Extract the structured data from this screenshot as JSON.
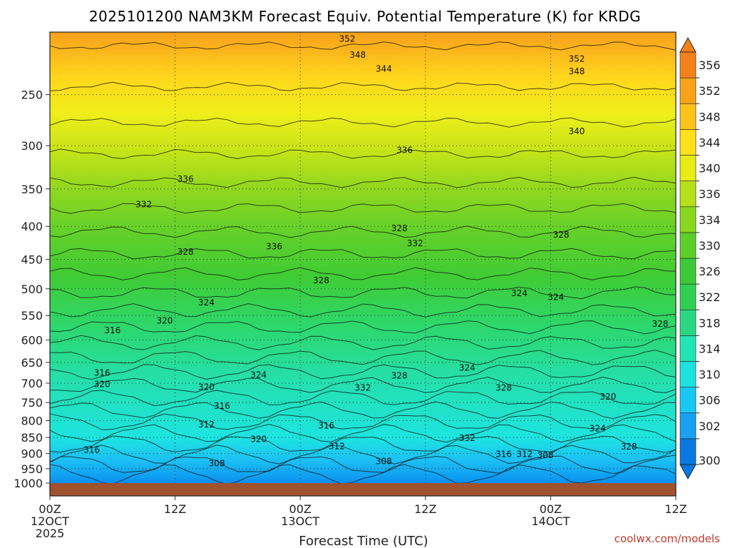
{
  "chart_data": {
    "type": "heatmap",
    "title": "2025101200 NAM3KM Forecast Equiv. Potential Temperature (K) for KRDG",
    "xlabel": "Forecast Time (UTC)",
    "ylabel": "",
    "x_ticks": [
      {
        "line1": "00Z",
        "line2": "12OCT",
        "line3": "2025",
        "hour": 0
      },
      {
        "line1": "12Z",
        "line2": "",
        "line3": "",
        "hour": 12
      },
      {
        "line1": "00Z",
        "line2": "13OCT",
        "line3": "",
        "hour": 24
      },
      {
        "line1": "12Z",
        "line2": "",
        "line3": "",
        "hour": 36
      },
      {
        "line1": "00Z",
        "line2": "14OCT",
        "line3": "",
        "hour": 48
      },
      {
        "line1": "12Z",
        "line2": "",
        "line3": "",
        "hour": 60
      }
    ],
    "xlim_hours": [
      0,
      60
    ],
    "y_ticks": [
      250,
      300,
      350,
      400,
      450,
      500,
      550,
      600,
      650,
      700,
      750,
      800,
      850,
      900,
      950,
      1000
    ],
    "ylim_hPa": [
      1000,
      200
    ],
    "y_scale": "log",
    "grid": "dotted",
    "colorbar_levels": [
      300,
      302,
      306,
      310,
      314,
      318,
      322,
      326,
      330,
      334,
      336,
      340,
      344,
      348,
      352,
      356
    ],
    "colorbar_label_values": [
      300,
      302,
      306,
      310,
      314,
      318,
      322,
      326,
      330,
      334,
      336,
      340,
      344,
      348,
      352,
      356
    ],
    "colorbar_colors": [
      "#0a78e0",
      "#1aa0f0",
      "#17c8f4",
      "#1de0e0",
      "#22e4b4",
      "#2ad884",
      "#2fd052",
      "#3dc837",
      "#5cce2a",
      "#88d61e",
      "#b5e01a",
      "#e6ec14",
      "#ffe01a",
      "#fcc21c",
      "#f8a21a",
      "#f4821a"
    ],
    "ground_color": "#a0522d",
    "contour_labels": [
      {
        "text": "352",
        "hour": 28.5,
        "p": 205
      },
      {
        "text": "348",
        "hour": 29.5,
        "p": 217
      },
      {
        "text": "344",
        "hour": 32.0,
        "p": 228
      },
      {
        "text": "352",
        "hour": 50.5,
        "p": 220
      },
      {
        "text": "348",
        "hour": 50.5,
        "p": 230
      },
      {
        "text": "340",
        "hour": 50.5,
        "p": 285
      },
      {
        "text": "336",
        "hour": 34.0,
        "p": 305
      },
      {
        "text": "336",
        "hour": 13.0,
        "p": 338
      },
      {
        "text": "332",
        "hour": 9.0,
        "p": 370
      },
      {
        "text": "328",
        "hour": 33.5,
        "p": 403
      },
      {
        "text": "332",
        "hour": 35.0,
        "p": 425
      },
      {
        "text": "328",
        "hour": 49.0,
        "p": 412
      },
      {
        "text": "336",
        "hour": 21.5,
        "p": 430
      },
      {
        "text": "328",
        "hour": 13.0,
        "p": 438
      },
      {
        "text": "328",
        "hour": 26.0,
        "p": 485
      },
      {
        "text": "324",
        "hour": 45.0,
        "p": 508
      },
      {
        "text": "324",
        "hour": 48.5,
        "p": 515
      },
      {
        "text": "324",
        "hour": 15.0,
        "p": 525
      },
      {
        "text": "320",
        "hour": 11.0,
        "p": 560
      },
      {
        "text": "316",
        "hour": 6.0,
        "p": 580
      },
      {
        "text": "328",
        "hour": 58.5,
        "p": 567
      },
      {
        "text": "324",
        "hour": 40.0,
        "p": 663
      },
      {
        "text": "316",
        "hour": 5.0,
        "p": 675
      },
      {
        "text": "320",
        "hour": 5.0,
        "p": 703
      },
      {
        "text": "324",
        "hour": 20.0,
        "p": 680
      },
      {
        "text": "328",
        "hour": 33.5,
        "p": 682
      },
      {
        "text": "320",
        "hour": 15.0,
        "p": 710
      },
      {
        "text": "332",
        "hour": 30.0,
        "p": 712
      },
      {
        "text": "328",
        "hour": 43.5,
        "p": 712
      },
      {
        "text": "320",
        "hour": 53.5,
        "p": 735
      },
      {
        "text": "316",
        "hour": 16.5,
        "p": 760
      },
      {
        "text": "312",
        "hour": 15.0,
        "p": 812
      },
      {
        "text": "316",
        "hour": 26.5,
        "p": 815
      },
      {
        "text": "324",
        "hour": 52.5,
        "p": 823
      },
      {
        "text": "320",
        "hour": 20.0,
        "p": 855
      },
      {
        "text": "332",
        "hour": 40.0,
        "p": 852
      },
      {
        "text": "312",
        "hour": 27.5,
        "p": 877
      },
      {
        "text": "328",
        "hour": 55.5,
        "p": 878
      },
      {
        "text": "316",
        "hour": 4.0,
        "p": 888
      },
      {
        "text": "316",
        "hour": 43.5,
        "p": 902
      },
      {
        "text": "312",
        "hour": 45.5,
        "p": 902
      },
      {
        "text": "308",
        "hour": 47.5,
        "p": 905
      },
      {
        "text": "308",
        "hour": 32.0,
        "p": 925
      },
      {
        "text": "308",
        "hour": 16.0,
        "p": 932
      }
    ]
  },
  "credit": "coolwx.com/models"
}
